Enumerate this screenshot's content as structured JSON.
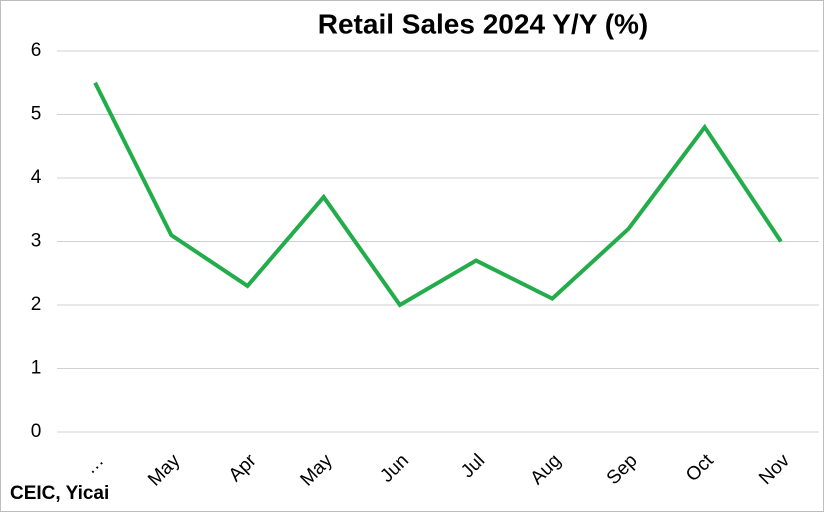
{
  "chart_data": {
    "type": "line",
    "title": "Retail Sales 2024 Y/Y (%)",
    "categories": [
      "…",
      "May",
      "Apr",
      "May",
      "Jun",
      "Jul",
      "Aug",
      "Sep",
      "Oct",
      "Nov"
    ],
    "series": [
      {
        "name": "Retail Sales 2024 Y/Y (%)",
        "color": "#22ac4a",
        "values": [
          5.5,
          3.1,
          2.3,
          3.7,
          2.0,
          2.7,
          2.1,
          3.2,
          4.8,
          3.0
        ]
      }
    ],
    "ylim": [
      0,
      6
    ],
    "yticks": [
      0,
      1,
      2,
      3,
      4,
      5,
      6
    ],
    "grid": true,
    "source": "CEIC, Yicai"
  }
}
